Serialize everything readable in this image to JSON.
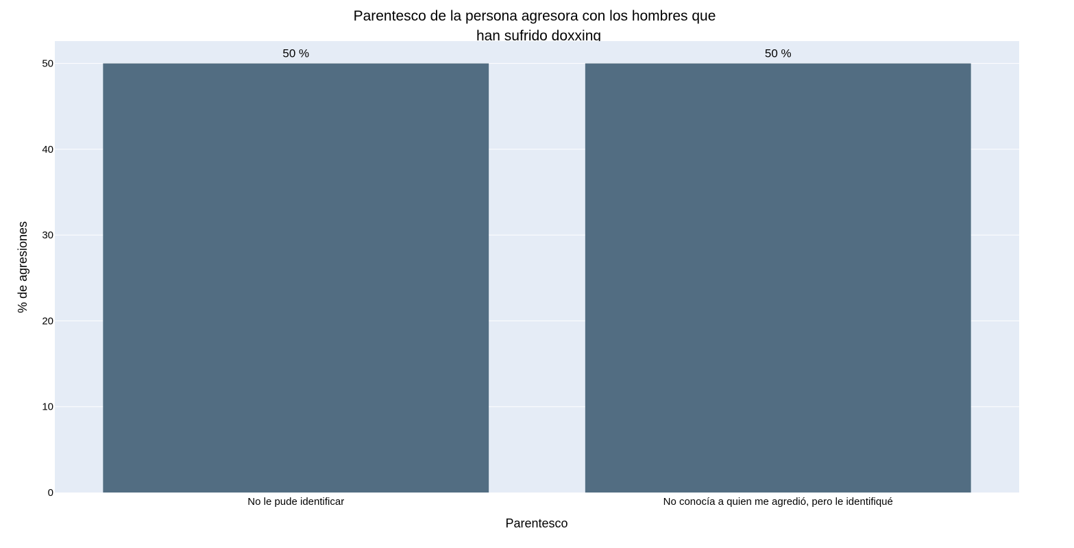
{
  "chart_data": {
    "type": "bar",
    "title_lines": [
      "Parentesco de la persona agresora con los hombres que",
      "han sufrido doxxing"
    ],
    "xlabel": "Parentesco",
    "ylabel": "% de agresiones",
    "categories": [
      "No le pude identificar",
      "No conocía a quien me agredió, pero le identifiqué"
    ],
    "values": [
      50,
      50
    ],
    "data_labels": [
      "50 %",
      "50 %"
    ],
    "ylim": [
      0,
      52.6
    ],
    "yticks": [
      0,
      10,
      20,
      30,
      40,
      50
    ],
    "grid": true,
    "legend": "none",
    "colors": {
      "bar": "#526d82",
      "plot_bg": "#e5ecf6",
      "grid": "#ffffff"
    }
  }
}
